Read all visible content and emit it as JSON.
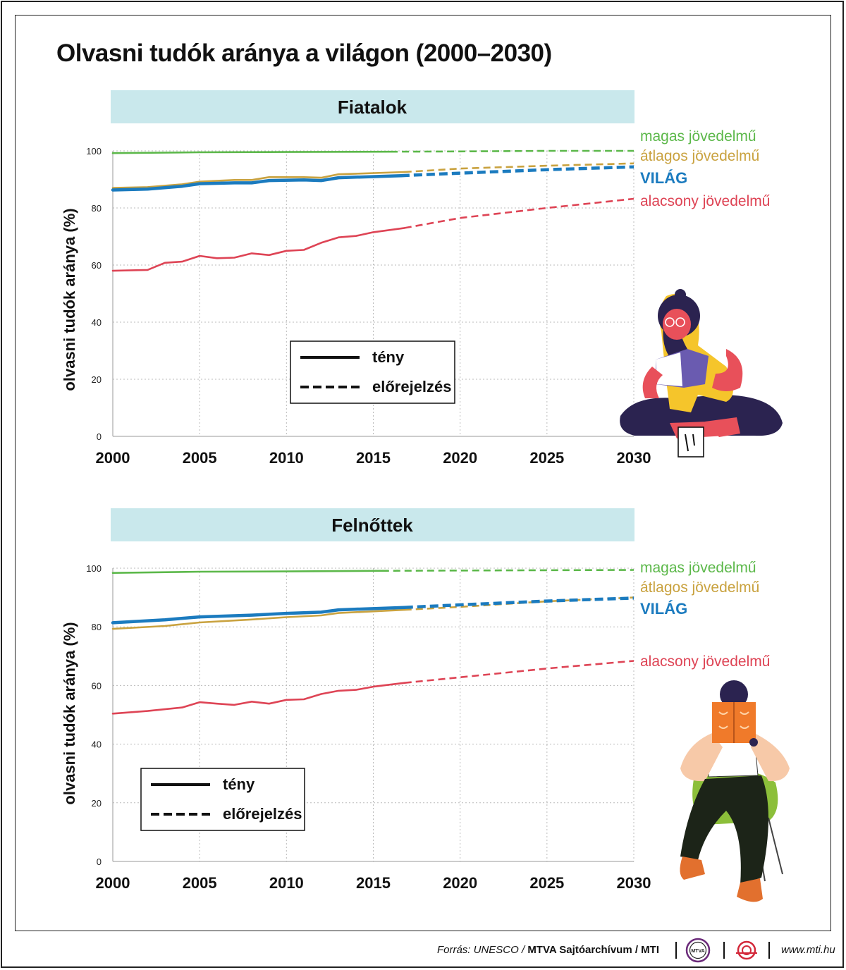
{
  "title": "Olvasni tudók aránya a világon (2000–2030)",
  "colors": {
    "high": "#5cb84a",
    "average": "#c9a23f",
    "world": "#1b7bbf",
    "low": "#de4455",
    "panel": "#c9e8ec",
    "grid": "#bbbbbb"
  },
  "chart_data": [
    {
      "type": "line",
      "panel_title": "Fiatalok",
      "ylabel": "olvasni tudók aránya (%)",
      "xlabel": "",
      "xlim": [
        2000,
        2030
      ],
      "ylim": [
        0,
        100
      ],
      "xticks": [
        "2000",
        "2005",
        "2010",
        "2015",
        "2020",
        "2025",
        "2030"
      ],
      "yticks": [
        "0",
        "20",
        "40",
        "60",
        "80",
        "100"
      ],
      "legend": {
        "position": "center-left",
        "actual": "tény",
        "forecast": "előrejelzés"
      },
      "series": [
        {
          "name": "magas jövedelmű",
          "color": "#5cb84a",
          "actual": [
            [
              2000,
              99.2
            ],
            [
              2005,
              99.5
            ],
            [
              2010,
              99.6
            ],
            [
              2016,
              99.7
            ]
          ],
          "forecast": [
            [
              2016,
              99.7
            ],
            [
              2020,
              99.8
            ],
            [
              2025,
              100
            ],
            [
              2030,
              100
            ]
          ]
        },
        {
          "name": "átlagos jövedelmű",
          "color": "#c9a23f",
          "actual": [
            [
              2000,
              87.0
            ],
            [
              2002,
              87.3
            ],
            [
              2004,
              88.3
            ],
            [
              2005,
              89.2
            ],
            [
              2007,
              89.8
            ],
            [
              2008,
              89.8
            ],
            [
              2009,
              90.8
            ],
            [
              2011,
              90.8
            ],
            [
              2012,
              90.6
            ],
            [
              2013,
              91.8
            ],
            [
              2014,
              92.0
            ],
            [
              2016.8,
              92.6
            ]
          ],
          "forecast": [
            [
              2016.8,
              92.6
            ],
            [
              2020,
              93.8
            ],
            [
              2025,
              94.8
            ],
            [
              2030,
              95.6
            ]
          ]
        },
        {
          "name": "VILÁG",
          "color": "#1b7bbf",
          "actual": [
            [
              2000,
              86.3
            ],
            [
              2002,
              86.6
            ],
            [
              2004,
              87.6
            ],
            [
              2005,
              88.5
            ],
            [
              2007,
              88.8
            ],
            [
              2008,
              88.8
            ],
            [
              2009,
              89.6
            ],
            [
              2011,
              89.8
            ],
            [
              2012,
              89.6
            ],
            [
              2013,
              90.6
            ],
            [
              2014,
              90.8
            ],
            [
              2016.6,
              91.3
            ]
          ],
          "forecast": [
            [
              2016.6,
              91.3
            ],
            [
              2020,
              92.2
            ],
            [
              2025,
              93.4
            ],
            [
              2030,
              94.4
            ]
          ]
        },
        {
          "name": "alacsony jövedelmű",
          "color": "#de4455",
          "actual": [
            [
              2000,
              58.0
            ],
            [
              2002,
              58.3
            ],
            [
              2003,
              60.8
            ],
            [
              2004,
              61.2
            ],
            [
              2005,
              63.2
            ],
            [
              2006,
              62.4
            ],
            [
              2007,
              62.6
            ],
            [
              2008,
              64.1
            ],
            [
              2009,
              63.5
            ],
            [
              2010,
              65.0
            ],
            [
              2011,
              65.3
            ],
            [
              2012,
              67.8
            ],
            [
              2013,
              69.7
            ],
            [
              2014,
              70.2
            ],
            [
              2015,
              71.5
            ],
            [
              2016.8,
              73.0
            ]
          ],
          "forecast": [
            [
              2016.8,
              73.0
            ],
            [
              2020,
              76.5
            ],
            [
              2025,
              80.0
            ],
            [
              2030,
              83.2
            ]
          ]
        }
      ]
    },
    {
      "type": "line",
      "panel_title": "Felnőttek",
      "ylabel": "olvasni tudók aránya (%)",
      "xlabel": "",
      "xlim": [
        2000,
        2030
      ],
      "ylim": [
        0,
        100
      ],
      "xticks": [
        "2000",
        "2005",
        "2010",
        "2015",
        "2020",
        "2025",
        "2030"
      ],
      "yticks": [
        "0",
        "20",
        "40",
        "60",
        "80",
        "100"
      ],
      "legend": {
        "position": "bottom-left",
        "actual": "tény",
        "forecast": "előrejelzés"
      },
      "series": [
        {
          "name": "magas jövedelmű",
          "color": "#5cb84a",
          "actual": [
            [
              2000,
              98.4
            ],
            [
              2005,
              98.8
            ],
            [
              2010,
              98.9
            ],
            [
              2015.5,
              99.1
            ]
          ],
          "forecast": [
            [
              2015.5,
              99.1
            ],
            [
              2020,
              99.2
            ],
            [
              2025,
              99.3
            ],
            [
              2030,
              99.4
            ]
          ]
        },
        {
          "name": "átlagos jövedelmű",
          "color": "#c9a23f",
          "actual": [
            [
              2000,
              79.3
            ],
            [
              2003,
              80.3
            ],
            [
              2005,
              81.5
            ],
            [
              2008,
              82.5
            ],
            [
              2010,
              83.3
            ],
            [
              2012,
              83.9
            ],
            [
              2013,
              84.7
            ],
            [
              2016.8,
              85.8
            ]
          ],
          "forecast": [
            [
              2016.8,
              85.8
            ],
            [
              2020,
              86.8
            ],
            [
              2025,
              88.7
            ],
            [
              2030,
              90.0
            ]
          ]
        },
        {
          "name": "VILÁG",
          "color": "#1b7bbf",
          "actual": [
            [
              2000,
              81.4
            ],
            [
              2003,
              82.4
            ],
            [
              2005,
              83.4
            ],
            [
              2008,
              84.0
            ],
            [
              2010,
              84.6
            ],
            [
              2012,
              85.0
            ],
            [
              2013,
              85.8
            ],
            [
              2016.8,
              86.6
            ]
          ],
          "forecast": [
            [
              2016.8,
              86.6
            ],
            [
              2020,
              87.5
            ],
            [
              2025,
              88.8
            ],
            [
              2030,
              89.8
            ]
          ]
        },
        {
          "name": "alacsony jövedelmű",
          "color": "#de4455",
          "actual": [
            [
              2000,
              50.4
            ],
            [
              2002,
              51.3
            ],
            [
              2004,
              52.5
            ],
            [
              2005,
              54.3
            ],
            [
              2006,
              53.8
            ],
            [
              2007,
              53.4
            ],
            [
              2008,
              54.5
            ],
            [
              2009,
              53.8
            ],
            [
              2010,
              55.1
            ],
            [
              2011,
              55.3
            ],
            [
              2012,
              57.1
            ],
            [
              2013,
              58.2
            ],
            [
              2014,
              58.5
            ],
            [
              2015,
              59.6
            ],
            [
              2016.8,
              60.9
            ]
          ],
          "forecast": [
            [
              2016.8,
              60.9
            ],
            [
              2020,
              62.8
            ],
            [
              2025,
              65.8
            ],
            [
              2030,
              68.4
            ]
          ]
        }
      ]
    }
  ],
  "footer": {
    "source_prefix": "Forrás: UNESCO / ",
    "source_bold": "MTVA Sajtóarchívum / MTI",
    "logo1_text": "MTVA",
    "website": "www.mti.hu"
  },
  "icons": [
    "girl-reading-illustration",
    "man-reading-illustration",
    "mtva-logo-icon",
    "mti-logo-icon"
  ]
}
